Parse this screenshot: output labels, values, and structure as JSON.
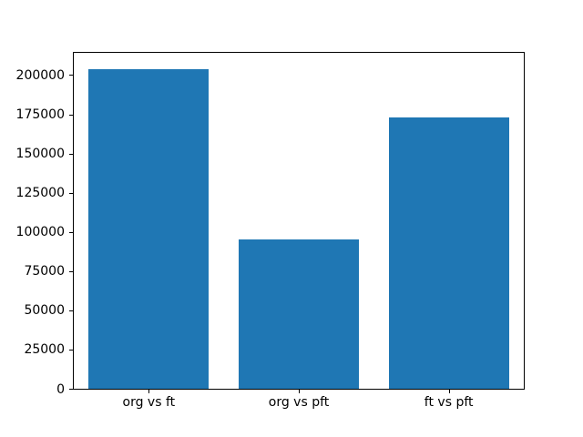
{
  "chart_data": {
    "type": "bar",
    "categories": [
      "org vs ft",
      "org vs pft",
      "ft vs pft"
    ],
    "values": [
      204000,
      95000,
      173000
    ],
    "title": "",
    "xlabel": "",
    "ylabel": "",
    "ylim": [
      0,
      214200
    ],
    "yticks": [
      0,
      25000,
      50000,
      75000,
      100000,
      125000,
      150000,
      175000,
      200000
    ],
    "bar_color": "#1f77b4",
    "bar_width_fraction": 0.8,
    "spine_color": "#000000",
    "background_color": "#ffffff",
    "grid": false,
    "legend": false
  }
}
